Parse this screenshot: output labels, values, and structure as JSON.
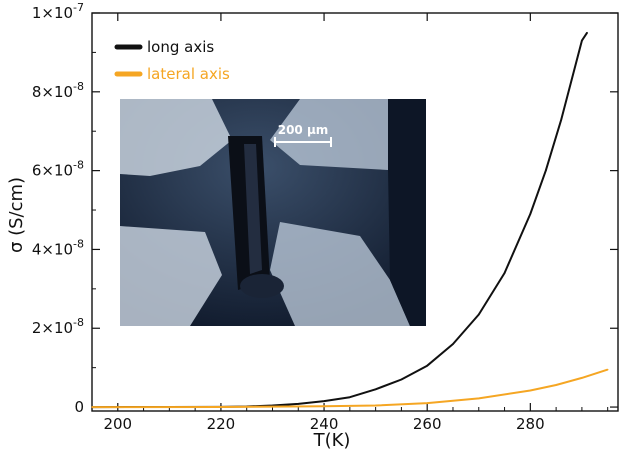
{
  "chart_data": {
    "type": "line",
    "xlabel": "T(K)",
    "ylabel": "σ (S/cm)",
    "xlim": [
      195,
      297
    ],
    "ylim": [
      -1e-09,
      1e-07
    ],
    "x_ticks": [
      200,
      220,
      240,
      260,
      280
    ],
    "x_tick_labels": [
      "200",
      "220",
      "240",
      "260",
      "280"
    ],
    "y_ticks": [
      0,
      2e-08,
      4e-08,
      6e-08,
      8e-08,
      1e-07
    ],
    "y_tick_labels": [
      {
        "mantissa": "0",
        "exp": ""
      },
      {
        "mantissa": "2×10",
        "exp": "-8"
      },
      {
        "mantissa": "4×10",
        "exp": "-8"
      },
      {
        "mantissa": "6×10",
        "exp": "-8"
      },
      {
        "mantissa": "8×10",
        "exp": "-8"
      },
      {
        "mantissa": "1×10",
        "exp": "-7"
      }
    ],
    "legend_position": "top-left",
    "series": [
      {
        "name": "long axis",
        "color": "#111111",
        "x": [
          195,
          210,
          220,
          225,
          230,
          235,
          240,
          245,
          250,
          255,
          260,
          265,
          270,
          275,
          280,
          283,
          286,
          288,
          290,
          291
        ],
        "y": [
          0,
          1e-11,
          5e-11,
          1.5e-10,
          4e-10,
          8e-10,
          1.5e-09,
          2.5e-09,
          4.5e-09,
          7e-09,
          1.05e-08,
          1.6e-08,
          2.35e-08,
          3.4e-08,
          4.9e-08,
          6e-08,
          7.3e-08,
          8.3e-08,
          9.3e-08,
          9.5e-08
        ]
      },
      {
        "name": "lateral axis",
        "color": "#f5a623",
        "x": [
          195,
          220,
          240,
          250,
          260,
          270,
          280,
          285,
          290,
          295
        ],
        "y": [
          0,
          1e-11,
          2e-10,
          4e-10,
          1e-09,
          2.2e-09,
          4.2e-09,
          5.6e-09,
          7.4e-09,
          9.5e-09
        ]
      }
    ],
    "inset": {
      "scale_bar_label": "200 µm"
    }
  }
}
